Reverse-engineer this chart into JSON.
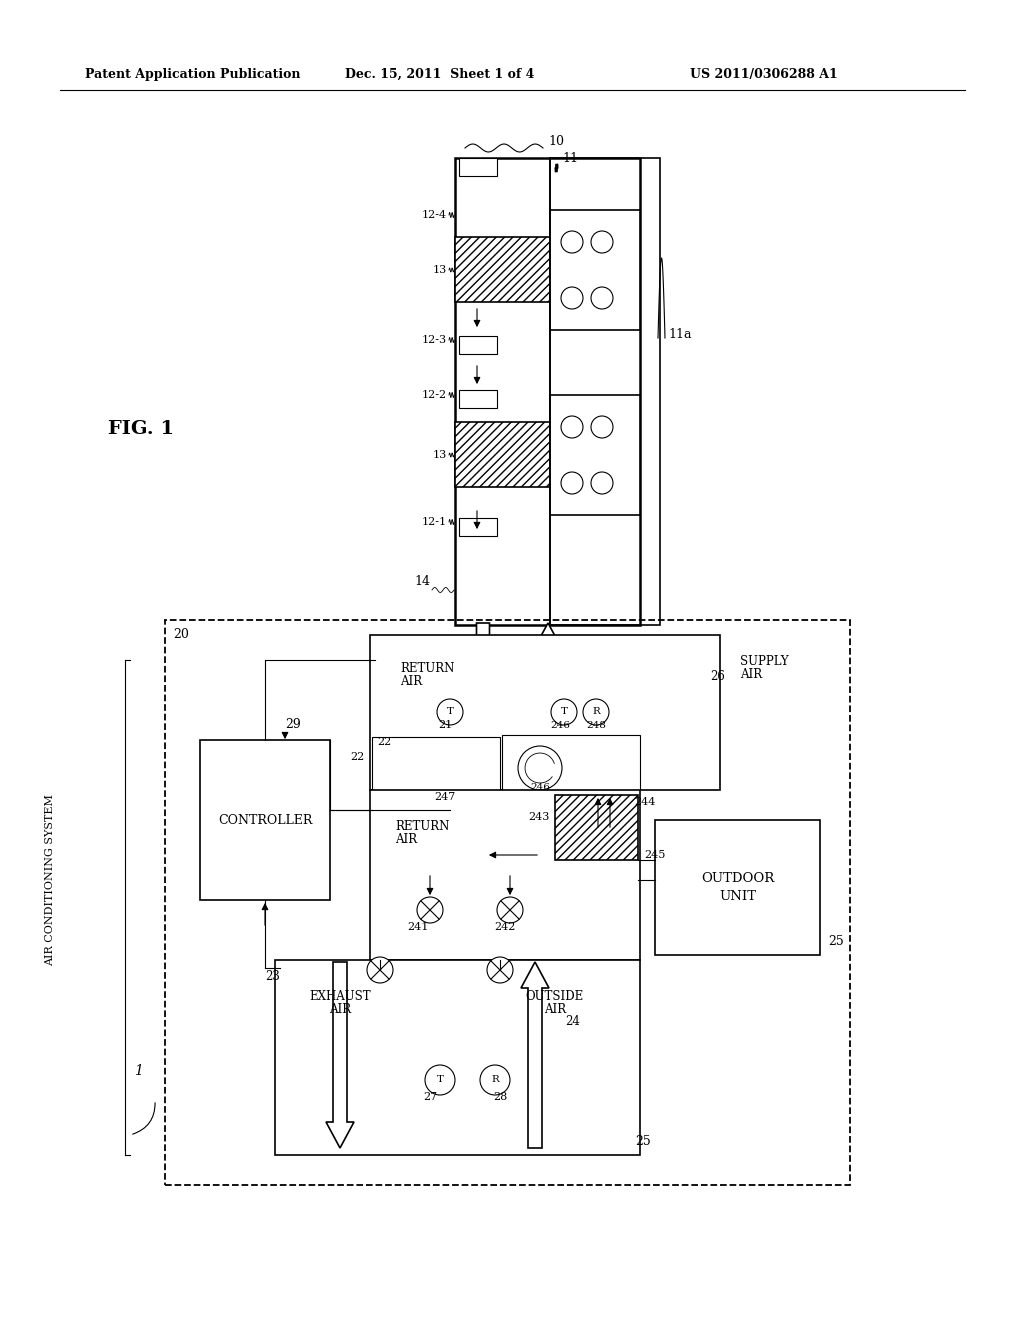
{
  "bg_color": "#ffffff",
  "header1": "Patent Application Publication",
  "header2": "Dec. 15, 2011  Sheet 1 of 4",
  "header3": "US 2011/0306288 A1",
  "fig_label": "FIG. 1"
}
